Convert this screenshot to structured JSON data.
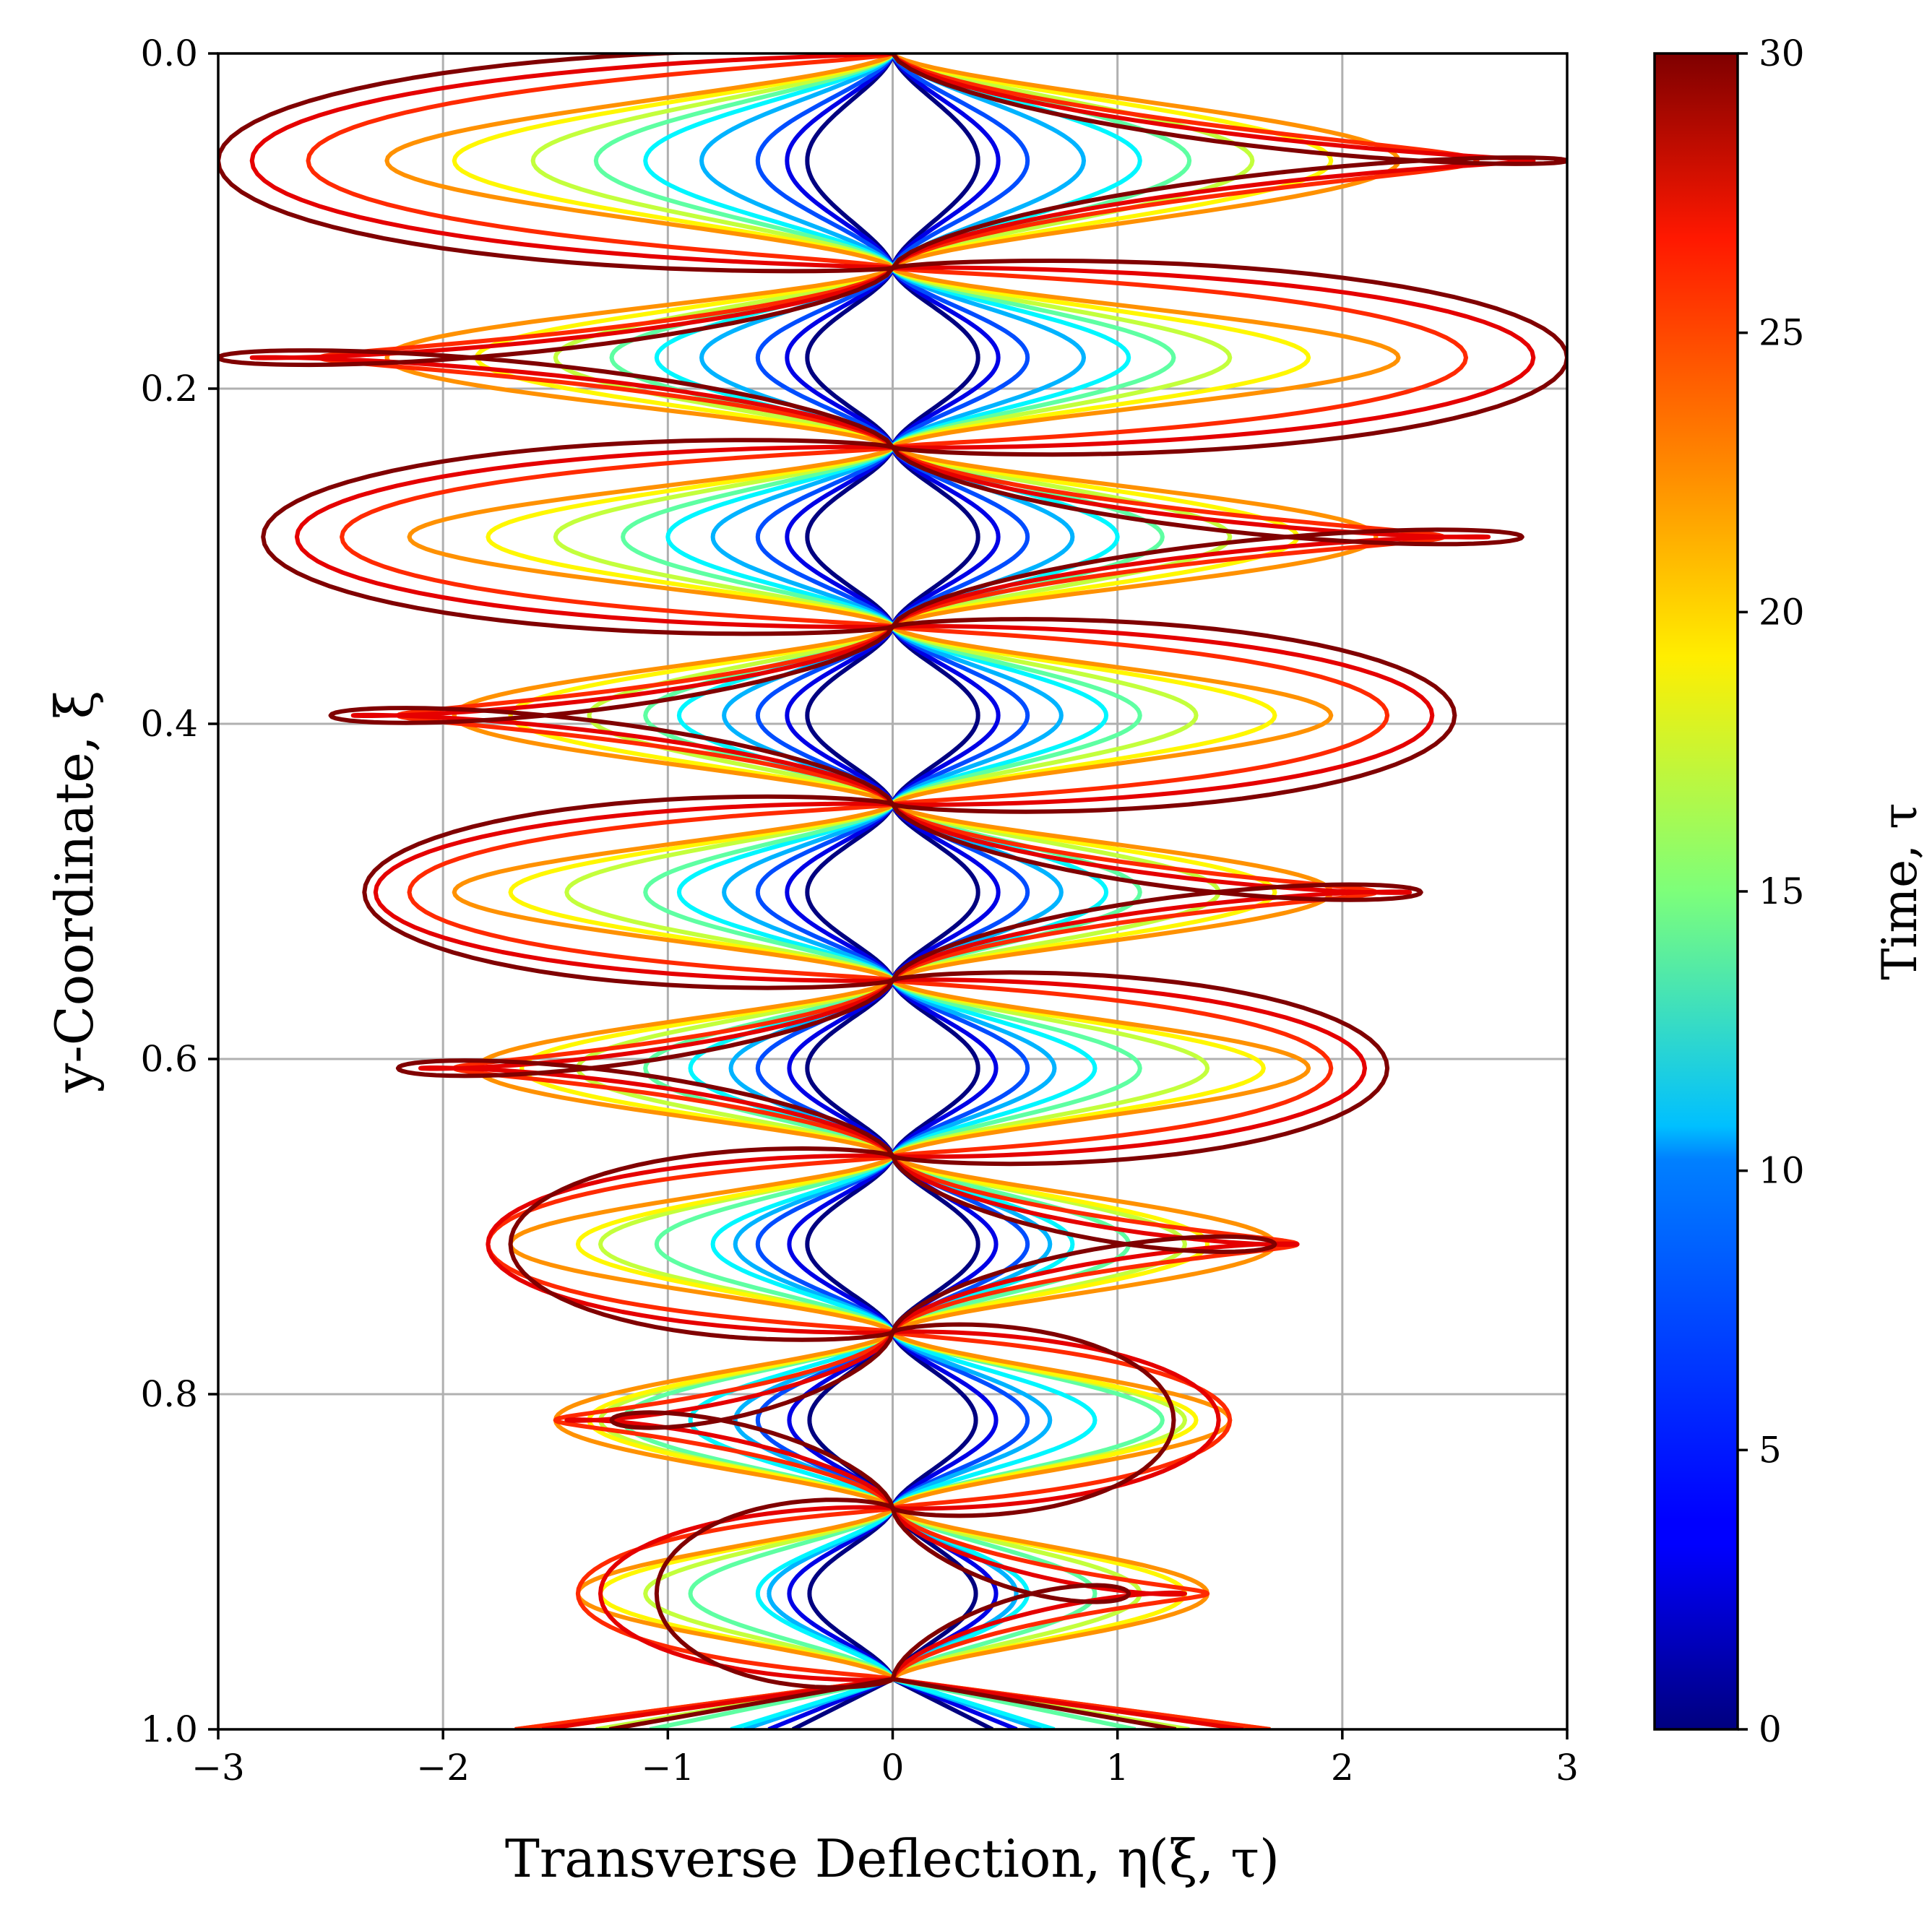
{
  "chart_data": {
    "type": "line",
    "xlabel": "Transverse Deflection, η(ξ, τ)",
    "ylabel": "y-Coordinate, ξ",
    "xlim": [
      -3,
      3
    ],
    "ylim": [
      0,
      1
    ],
    "y_inverted": true,
    "xticks": [
      "−3",
      "−2",
      "−1",
      "0",
      "1",
      "2",
      "3"
    ],
    "yticks": [
      "0.0",
      "0.2",
      "0.4",
      "0.6",
      "0.8",
      "1.0"
    ],
    "grid": true,
    "colormap": "jet",
    "colorbar": {
      "label": "Time, τ",
      "range": [
        0,
        30
      ],
      "ticks": [
        "0",
        "5",
        "10",
        "15",
        "20",
        "25",
        "30"
      ]
    },
    "series_note_lobes": 9,
    "series": [
      {
        "tau": 0,
        "amp": [
          0.38,
          0.38,
          0.38,
          0.38,
          0.38,
          0.38,
          0.38,
          0.37,
          0.37
        ],
        "tilt": 0.0
      },
      {
        "tau": 3,
        "amp": [
          0.47,
          0.47,
          0.47,
          0.47,
          0.47,
          0.46,
          0.46,
          0.46,
          0.46
        ],
        "tilt": 0.0
      },
      {
        "tau": 6,
        "amp": [
          0.6,
          0.6,
          0.6,
          0.6,
          0.6,
          0.6,
          0.6,
          0.6,
          0.55
        ],
        "tilt": 0.0
      },
      {
        "tau": 9,
        "amp": [
          0.85,
          0.85,
          0.8,
          0.75,
          0.75,
          0.72,
          0.7,
          0.7,
          0.55
        ],
        "tilt": 0.0
      },
      {
        "tau": 11,
        "amp": [
          1.1,
          1.05,
          1.0,
          0.95,
          0.95,
          0.9,
          0.8,
          0.9,
          0.6
        ],
        "tilt": 0.0
      },
      {
        "tau": 14,
        "amp": [
          1.32,
          1.25,
          1.2,
          1.1,
          1.1,
          1.1,
          1.05,
          1.2,
          0.9
        ],
        "tilt": 0.0
      },
      {
        "tau": 17,
        "amp": [
          1.6,
          1.5,
          1.5,
          1.35,
          1.45,
          1.4,
          1.3,
          1.3,
          1.1
        ],
        "tilt": 0.0
      },
      {
        "tau": 19,
        "amp": [
          1.95,
          1.85,
          1.8,
          1.7,
          1.7,
          1.65,
          1.4,
          1.35,
          1.3
        ],
        "tilt": 0.0
      },
      {
        "tau": 22,
        "amp": [
          2.25,
          2.25,
          2.15,
          1.95,
          1.95,
          1.85,
          1.7,
          1.5,
          1.4
        ],
        "tilt": 0.0
      },
      {
        "tau": 25,
        "amp": [
          2.6,
          2.55,
          2.45,
          2.2,
          2.15,
          1.95,
          1.8,
          1.5,
          1.4
        ],
        "tilt": 0.012
      },
      {
        "tau": 27,
        "amp": [
          2.85,
          2.85,
          2.65,
          2.4,
          2.3,
          2.1,
          1.8,
          1.45,
          1.3
        ],
        "tilt": 0.018
      },
      {
        "tau": 30,
        "amp": [
          3.0,
          3.0,
          2.8,
          2.5,
          2.35,
          2.2,
          1.7,
          1.25,
          1.05
        ],
        "tilt": 0.025
      }
    ]
  }
}
